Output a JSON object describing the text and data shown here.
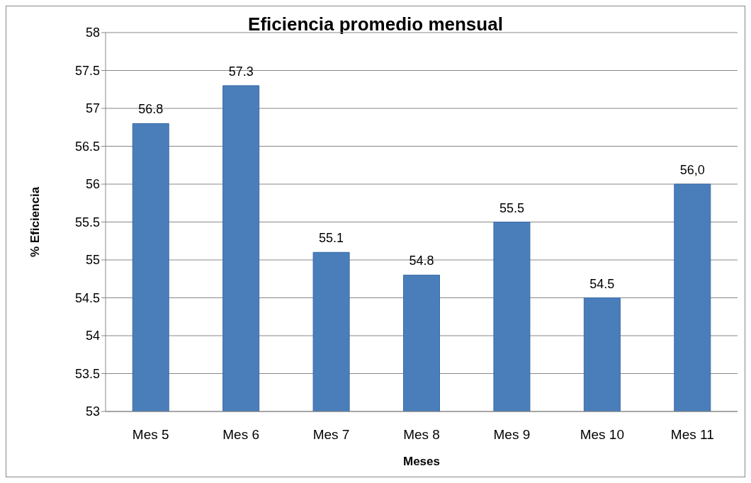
{
  "chart_data": {
    "type": "bar",
    "title": "Eficiencia promedio mensual",
    "xlabel": "Meses",
    "ylabel": "% Eficiencia",
    "categories": [
      "Mes 5",
      "Mes 6",
      "Mes 7",
      "Mes 8",
      "Mes 9",
      "Mes 10",
      "Mes 11"
    ],
    "values": [
      56.8,
      57.3,
      55.1,
      54.8,
      55.5,
      54.5,
      56.0
    ],
    "value_labels": [
      "56.8",
      "57.3",
      "55.1",
      "54.8",
      "55.5",
      "54.5",
      "56,0"
    ],
    "color": "#4a7ebb",
    "ylim": [
      53,
      58
    ],
    "yticks": [
      53,
      53.5,
      54,
      54.5,
      55,
      55.5,
      56,
      56.5,
      57,
      57.5,
      58
    ],
    "grid": "y",
    "legend": false
  }
}
